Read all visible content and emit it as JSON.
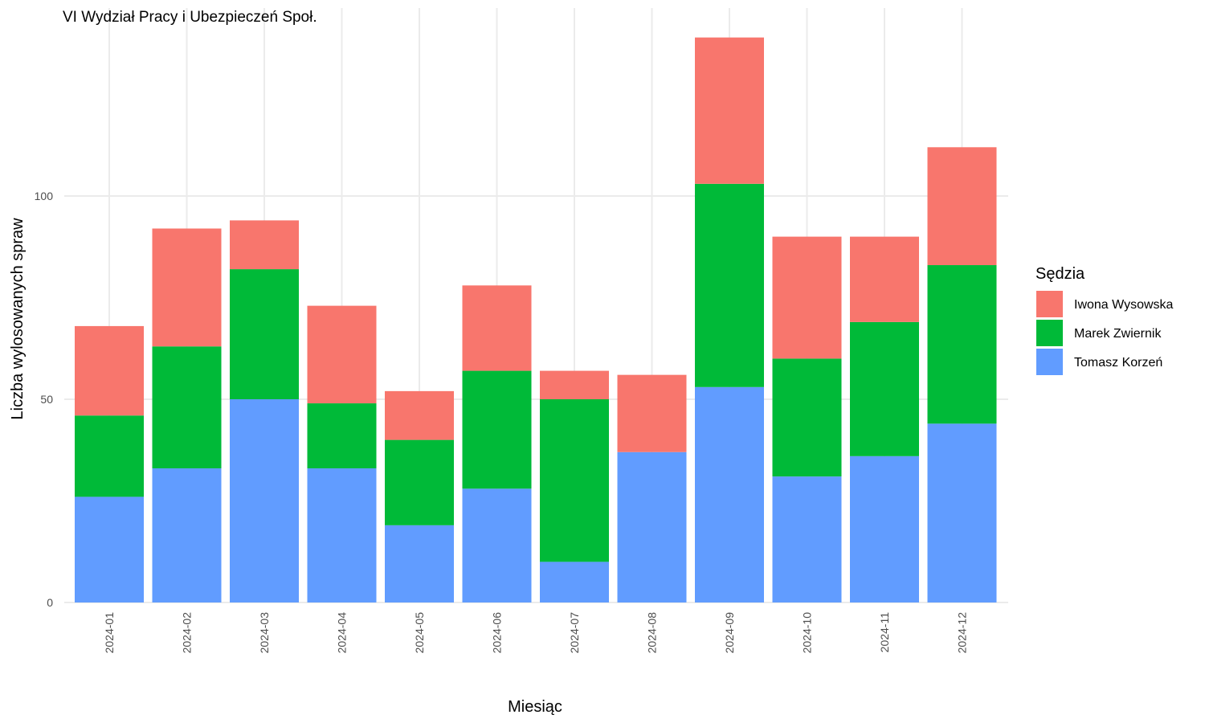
{
  "chart_data": {
    "type": "bar",
    "stacked": true,
    "title": "VI Wydział Pracy i Ubezpieczeń Społ.",
    "xlabel": "Miesiąc",
    "ylabel": "Liczba wylosowanych spraw",
    "categories": [
      "2024-01",
      "2024-02",
      "2024-03",
      "2024-04",
      "2024-05",
      "2024-06",
      "2024-07",
      "2024-08",
      "2024-09",
      "2024-10",
      "2024-11",
      "2024-12"
    ],
    "series": [
      {
        "name": "Tomasz Korzeń",
        "color": "#619CFF",
        "values": [
          26,
          33,
          50,
          33,
          19,
          28,
          10,
          37,
          53,
          31,
          36,
          44
        ]
      },
      {
        "name": "Marek Zwiernik",
        "color": "#00BA38",
        "values": [
          20,
          30,
          32,
          16,
          21,
          29,
          40,
          0,
          50,
          29,
          33,
          39
        ]
      },
      {
        "name": "Iwona Wysowska",
        "color": "#F8766D",
        "values": [
          22,
          29,
          12,
          24,
          12,
          21,
          7,
          19,
          36,
          30,
          21,
          29
        ]
      }
    ],
    "ylim": [
      0,
      140
    ],
    "yticks": [
      0,
      50,
      100
    ],
    "legend": {
      "title": "Sędzia",
      "position": "right",
      "entries": [
        "Iwona Wysowska",
        "Marek Zwiernik",
        "Tomasz Korzeń"
      ]
    },
    "grid": true
  }
}
